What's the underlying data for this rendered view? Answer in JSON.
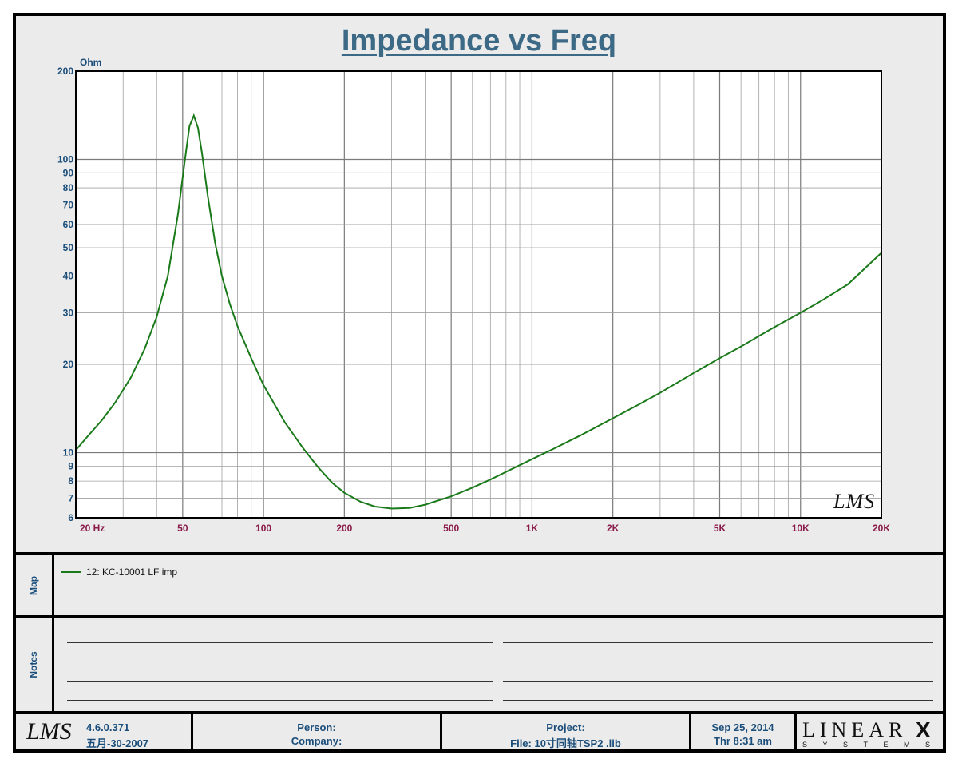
{
  "chart_data": {
    "type": "line",
    "title": "Impedance vs Freq",
    "ylabel": "Ohm",
    "xlabel": "",
    "x_scale": "log",
    "y_scale": "log",
    "xlim": [
      20,
      20000
    ],
    "ylim": [
      6,
      200
    ],
    "x_ticks": [
      {
        "value": 20,
        "label": "20  Hz"
      },
      {
        "value": 50,
        "label": "50"
      },
      {
        "value": 100,
        "label": "100"
      },
      {
        "value": 200,
        "label": "200"
      },
      {
        "value": 500,
        "label": "500"
      },
      {
        "value": 1000,
        "label": "1K"
      },
      {
        "value": 2000,
        "label": "2K"
      },
      {
        "value": 5000,
        "label": "5K"
      },
      {
        "value": 10000,
        "label": "10K"
      },
      {
        "value": 20000,
        "label": "20K"
      }
    ],
    "y_ticks": [
      {
        "value": 200,
        "label": "200"
      },
      {
        "value": 100,
        "label": "100"
      },
      {
        "value": 90,
        "label": "90"
      },
      {
        "value": 80,
        "label": "80"
      },
      {
        "value": 70,
        "label": "70"
      },
      {
        "value": 60,
        "label": "60"
      },
      {
        "value": 50,
        "label": "50"
      },
      {
        "value": 40,
        "label": "40"
      },
      {
        "value": 30,
        "label": "30"
      },
      {
        "value": 20,
        "label": "20"
      },
      {
        "value": 10,
        "label": "10"
      },
      {
        "value": 9,
        "label": "9"
      },
      {
        "value": 8,
        "label": "8"
      },
      {
        "value": 7,
        "label": "7"
      },
      {
        "value": 6,
        "label": "6"
      }
    ],
    "grid": true,
    "series": [
      {
        "name": "12: KC-10001 LF  imp",
        "color": "#1a7a1a",
        "points": [
          [
            20,
            10.2
          ],
          [
            22,
            11.3
          ],
          [
            25,
            12.9
          ],
          [
            28,
            14.8
          ],
          [
            32,
            18.0
          ],
          [
            36,
            22.5
          ],
          [
            40,
            29.0
          ],
          [
            44,
            40.0
          ],
          [
            48,
            65.0
          ],
          [
            51,
            100.0
          ],
          [
            53,
            130.0
          ],
          [
            55,
            141.0
          ],
          [
            57,
            128.0
          ],
          [
            59,
            105.0
          ],
          [
            62,
            75.0
          ],
          [
            66,
            52.0
          ],
          [
            70,
            40.0
          ],
          [
            75,
            32.0
          ],
          [
            80,
            27.0
          ],
          [
            90,
            21.0
          ],
          [
            100,
            17.0
          ],
          [
            120,
            12.7
          ],
          [
            140,
            10.4
          ],
          [
            160,
            8.9
          ],
          [
            180,
            7.9
          ],
          [
            200,
            7.3
          ],
          [
            230,
            6.8
          ],
          [
            260,
            6.55
          ],
          [
            300,
            6.45
          ],
          [
            350,
            6.48
          ],
          [
            400,
            6.65
          ],
          [
            500,
            7.1
          ],
          [
            600,
            7.6
          ],
          [
            700,
            8.1
          ],
          [
            800,
            8.6
          ],
          [
            1000,
            9.5
          ],
          [
            1200,
            10.3
          ],
          [
            1500,
            11.4
          ],
          [
            2000,
            13.1
          ],
          [
            2500,
            14.6
          ],
          [
            3000,
            16.0
          ],
          [
            4000,
            18.7
          ],
          [
            5000,
            21.0
          ],
          [
            6000,
            23.0
          ],
          [
            7000,
            25.0
          ],
          [
            8000,
            26.8
          ],
          [
            10000,
            30.0
          ],
          [
            12000,
            33.0
          ],
          [
            15000,
            37.5
          ],
          [
            20000,
            48.0
          ]
        ]
      }
    ],
    "watermark": "LMS"
  },
  "panels": {
    "map_label": "Map",
    "notes_label": "Notes"
  },
  "legend": {
    "entries": [
      {
        "label": "12: KC-10001 LF  imp",
        "color": "#1a7a1a"
      }
    ]
  },
  "footer": {
    "logo": "LMS",
    "version": "4.6.0.371",
    "build_date": "五月-30-2007",
    "person_label": "Person:",
    "company_label": "Company:",
    "project_label": "Project:",
    "file_label": "File: 10寸同轴TSP2 .lib",
    "date": "Sep 25, 2014",
    "time": "Thr  8:31 am",
    "brand_main": "LINEAR",
    "brand_x": "X",
    "brand_sub": "SYSTEMS"
  }
}
